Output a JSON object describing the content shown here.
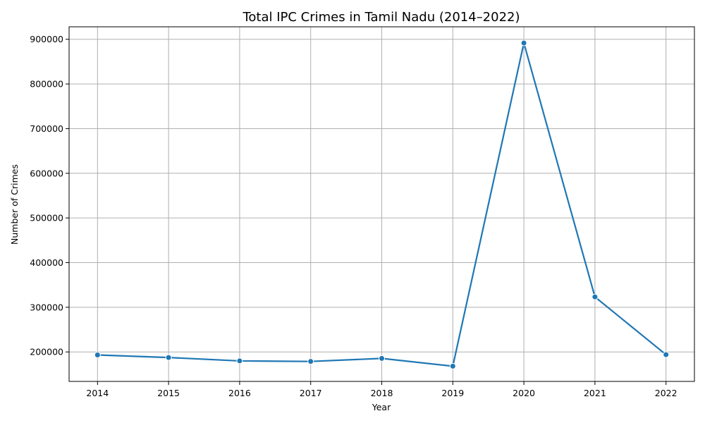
{
  "chart_data": {
    "type": "line",
    "title": "Total IPC Crimes in Tamil Nadu (2014–2022)",
    "xlabel": "Year",
    "ylabel": "Number of Crimes",
    "x": [
      2014,
      2015,
      2016,
      2017,
      2018,
      2019,
      2020,
      2021,
      2022
    ],
    "x_tick_labels": [
      "2014",
      "2015",
      "2016",
      "2017",
      "2018",
      "2019",
      "2020",
      "2021",
      "2022"
    ],
    "y_ticks": [
      200000,
      300000,
      400000,
      500000,
      600000,
      700000,
      800000,
      900000
    ],
    "y_tick_labels": [
      "200000",
      "300000",
      "400000",
      "500000",
      "600000",
      "700000",
      "800000",
      "900000"
    ],
    "ylim": [
      134000,
      928000
    ],
    "xlim": [
      2013.6,
      2022.4
    ],
    "grid": true,
    "series": [
      {
        "values": [
          193200,
          187500,
          179900,
          178700,
          185500,
          168100,
          891700,
          323200,
          193900
        ],
        "color": "#1f77b4"
      }
    ]
  }
}
